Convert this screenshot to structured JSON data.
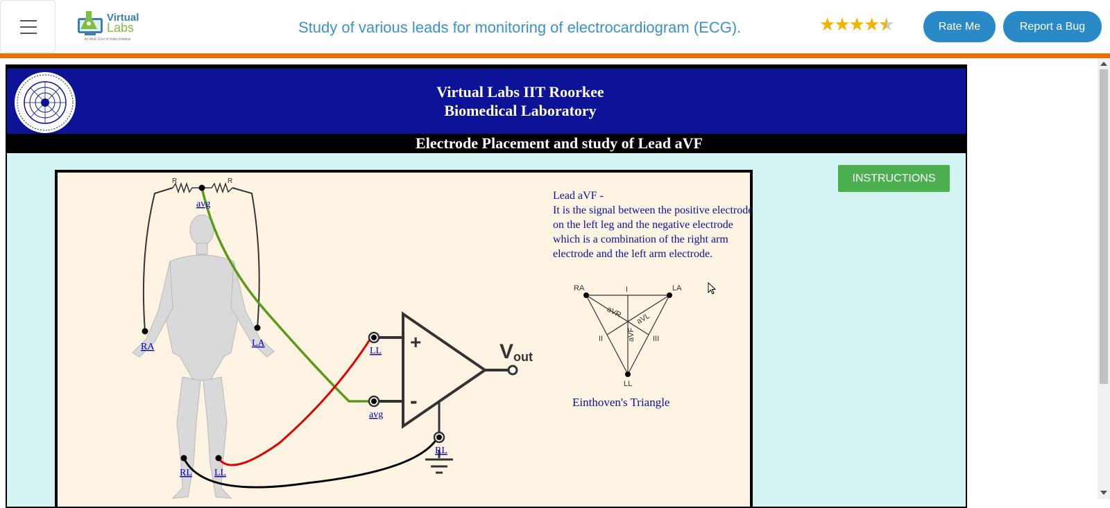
{
  "topbar": {
    "logo_line1": "Virtual",
    "logo_line2": "Labs",
    "logo_sub": "An MoE Govt of India Initiative",
    "title": "Study of various leads for monitoring of electrocardiogram (ECG).",
    "rating": 4.5,
    "rate_label": "Rate Me",
    "bug_label": "Report a Bug"
  },
  "header": {
    "line1": "Virtual Labs IIT Roorkee",
    "line2": "Biomedical Laboratory",
    "subtitle": "Electrode Placement and study of Lead aVF"
  },
  "instructions_label": "INSTRUCTIONS",
  "description": {
    "heading": "Lead aVF -",
    "body": "It is the signal between the positive electrode on the left leg and the negative electrode which is a combination of the right arm electrode and the left arm electrode."
  },
  "einthoven": {
    "caption": "Einthoven's Triangle",
    "ra": "RA",
    "la": "LA",
    "ll": "LL",
    "lead1": "I",
    "lead2": "II",
    "lead3": "III",
    "avr": "aVR",
    "avl": "aVL",
    "avf": "aVF"
  },
  "circuit": {
    "resistor_label": "R",
    "avg_label": "avg",
    "ra_label": "RA",
    "la_label": "LA",
    "rl_label": "RL",
    "ll_label": "LL",
    "input_plus_label": "LL",
    "input_minus_label": "avg",
    "ground_label": "RL",
    "vout_v": "V",
    "vout_sub": "out"
  },
  "colors": {
    "accent_orange": "#ef6c00",
    "header_blue": "#0c1396",
    "panel_bg": "#fcf3e3",
    "frame_bg": "#d4f4f4",
    "wire_green": "#5a9a1a",
    "wire_red": "#e00000",
    "button_green": "#4caf50",
    "button_blue": "#2a8ac8"
  }
}
